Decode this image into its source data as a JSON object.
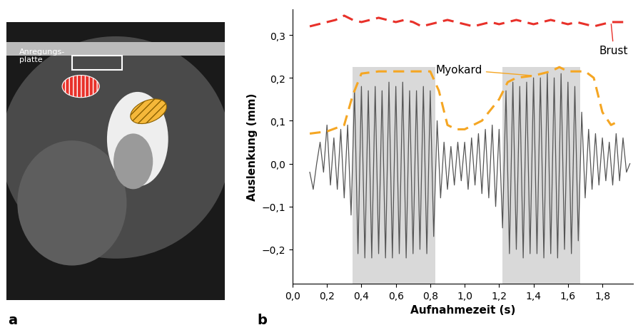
{
  "image_panel": {
    "panel_label": "a",
    "annotation": "Anregungs-\nplatte"
  },
  "chart_data": {
    "type": "line",
    "panel_label": "b",
    "x_label": "Aufnahmezeit (s)",
    "y_label": "Auslenkung (mm)",
    "xlim": [
      0,
      1.98
    ],
    "ylim": [
      -0.28,
      0.36
    ],
    "xticks": [
      {
        "value": 0.0,
        "label": "0,0"
      },
      {
        "value": 0.2,
        "label": "0,2"
      },
      {
        "value": 0.4,
        "label": "0,4"
      },
      {
        "value": 0.6,
        "label": "0,6"
      },
      {
        "value": 0.8,
        "label": "0,8"
      },
      {
        "value": 1.0,
        "label": "1,0"
      },
      {
        "value": 1.2,
        "label": "1,2"
      },
      {
        "value": 1.4,
        "label": "1,4"
      },
      {
        "value": 1.6,
        "label": "1,6"
      },
      {
        "value": 1.8,
        "label": "1,8"
      }
    ],
    "yticks": [
      {
        "value": -0.2,
        "label": "−0,2"
      },
      {
        "value": -0.1,
        "label": "−0,1"
      },
      {
        "value": 0.0,
        "label": "0,0"
      },
      {
        "value": 0.1,
        "label": "0,1"
      },
      {
        "value": 0.2,
        "label": "0,2"
      },
      {
        "value": 0.3,
        "label": "0,3"
      }
    ],
    "grid": false,
    "shaded_regions": [
      {
        "x": [
          0.35,
          0.83
        ],
        "y": [
          -0.28,
          0.225
        ]
      },
      {
        "x": [
          1.22,
          1.67
        ],
        "y": [
          -0.28,
          0.225
        ]
      }
    ],
    "series": [
      {
        "name": "Brust",
        "color": "#e8312a",
        "line_style": "dashed",
        "x": [
          0.1,
          0.15,
          0.2,
          0.25,
          0.3,
          0.35,
          0.4,
          0.45,
          0.5,
          0.55,
          0.6,
          0.65,
          0.7,
          0.75,
          0.8,
          0.85,
          0.9,
          0.95,
          1.0,
          1.05,
          1.1,
          1.15,
          1.2,
          1.25,
          1.3,
          1.35,
          1.4,
          1.45,
          1.5,
          1.55,
          1.6,
          1.65,
          1.7,
          1.75,
          1.8,
          1.85,
          1.9,
          1.95
        ],
        "values": [
          0.32,
          0.325,
          0.33,
          0.335,
          0.345,
          0.335,
          0.33,
          0.335,
          0.34,
          0.335,
          0.33,
          0.335,
          0.33,
          0.32,
          0.325,
          0.33,
          0.335,
          0.33,
          0.325,
          0.32,
          0.325,
          0.33,
          0.325,
          0.33,
          0.335,
          0.33,
          0.325,
          0.33,
          0.335,
          0.33,
          0.325,
          0.33,
          0.325,
          0.32,
          0.325,
          0.33,
          0.33,
          0.33
        ]
      },
      {
        "name": "Myokard",
        "color": "#f5a623",
        "line_style": "dashed",
        "x": [
          0.1,
          0.2,
          0.3,
          0.35,
          0.4,
          0.5,
          0.6,
          0.7,
          0.8,
          0.85,
          0.9,
          0.95,
          1.0,
          1.05,
          1.1,
          1.2,
          1.25,
          1.3,
          1.4,
          1.5,
          1.55,
          1.6,
          1.7,
          1.75,
          1.8,
          1.85,
          1.9
        ],
        "values": [
          0.07,
          0.075,
          0.09,
          0.16,
          0.21,
          0.215,
          0.215,
          0.215,
          0.215,
          0.17,
          0.09,
          0.08,
          0.08,
          0.09,
          0.1,
          0.15,
          0.19,
          0.2,
          0.205,
          0.215,
          0.225,
          0.215,
          0.215,
          0.2,
          0.12,
          0.09,
          0.1
        ]
      },
      {
        "color": "#555555",
        "line_style": "solid",
        "x": [
          0.1,
          0.12,
          0.14,
          0.16,
          0.18,
          0.2,
          0.22,
          0.24,
          0.26,
          0.28,
          0.3,
          0.32,
          0.34,
          0.36,
          0.38,
          0.4,
          0.42,
          0.44,
          0.46,
          0.48,
          0.5,
          0.52,
          0.54,
          0.56,
          0.58,
          0.6,
          0.62,
          0.64,
          0.66,
          0.68,
          0.7,
          0.72,
          0.74,
          0.76,
          0.78,
          0.8,
          0.82,
          0.84,
          0.86,
          0.88,
          0.9,
          0.92,
          0.94,
          0.96,
          0.98,
          1.0,
          1.02,
          1.04,
          1.06,
          1.08,
          1.1,
          1.12,
          1.14,
          1.16,
          1.18,
          1.2,
          1.22,
          1.24,
          1.26,
          1.28,
          1.3,
          1.32,
          1.34,
          1.36,
          1.38,
          1.4,
          1.42,
          1.44,
          1.46,
          1.48,
          1.5,
          1.52,
          1.54,
          1.56,
          1.58,
          1.6,
          1.62,
          1.64,
          1.66,
          1.68,
          1.7,
          1.72,
          1.74,
          1.76,
          1.78,
          1.8,
          1.82,
          1.84,
          1.86,
          1.88,
          1.9,
          1.92,
          1.94,
          1.96
        ],
        "values": [
          -0.02,
          -0.06,
          0.0,
          0.05,
          -0.02,
          0.09,
          -0.05,
          0.06,
          -0.06,
          0.08,
          -0.08,
          0.09,
          -0.12,
          0.17,
          -0.21,
          0.18,
          -0.22,
          0.17,
          -0.22,
          0.18,
          -0.21,
          0.17,
          -0.22,
          0.19,
          -0.22,
          0.18,
          -0.21,
          0.19,
          -0.22,
          0.17,
          -0.21,
          0.17,
          -0.2,
          0.18,
          -0.21,
          0.17,
          -0.17,
          0.1,
          -0.08,
          0.05,
          -0.06,
          0.04,
          -0.05,
          0.05,
          -0.04,
          0.05,
          -0.06,
          0.06,
          -0.05,
          0.07,
          -0.07,
          0.08,
          -0.08,
          0.09,
          -0.1,
          0.08,
          -0.15,
          0.17,
          -0.21,
          0.19,
          -0.2,
          0.18,
          -0.22,
          0.19,
          -0.21,
          0.2,
          -0.21,
          0.2,
          -0.22,
          0.21,
          -0.21,
          0.2,
          -0.22,
          0.21,
          -0.2,
          0.19,
          -0.21,
          0.18,
          -0.18,
          0.12,
          -0.08,
          0.08,
          -0.06,
          0.07,
          -0.05,
          0.06,
          -0.04,
          0.05,
          -0.05,
          0.07,
          -0.04,
          0.06,
          -0.02,
          0.0
        ]
      }
    ]
  }
}
